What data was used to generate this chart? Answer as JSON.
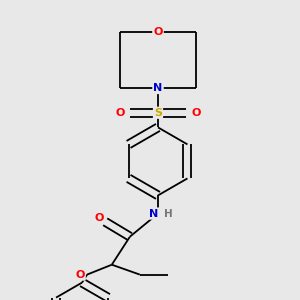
{
  "bg_color": "#e8e8e8",
  "bond_color": "#000000",
  "atom_colors": {
    "O": "#ff0000",
    "N": "#0000cc",
    "S": "#ccaa00",
    "H": "#777777",
    "C": "#000000"
  },
  "lw": 1.3,
  "fontsize": 7.5
}
